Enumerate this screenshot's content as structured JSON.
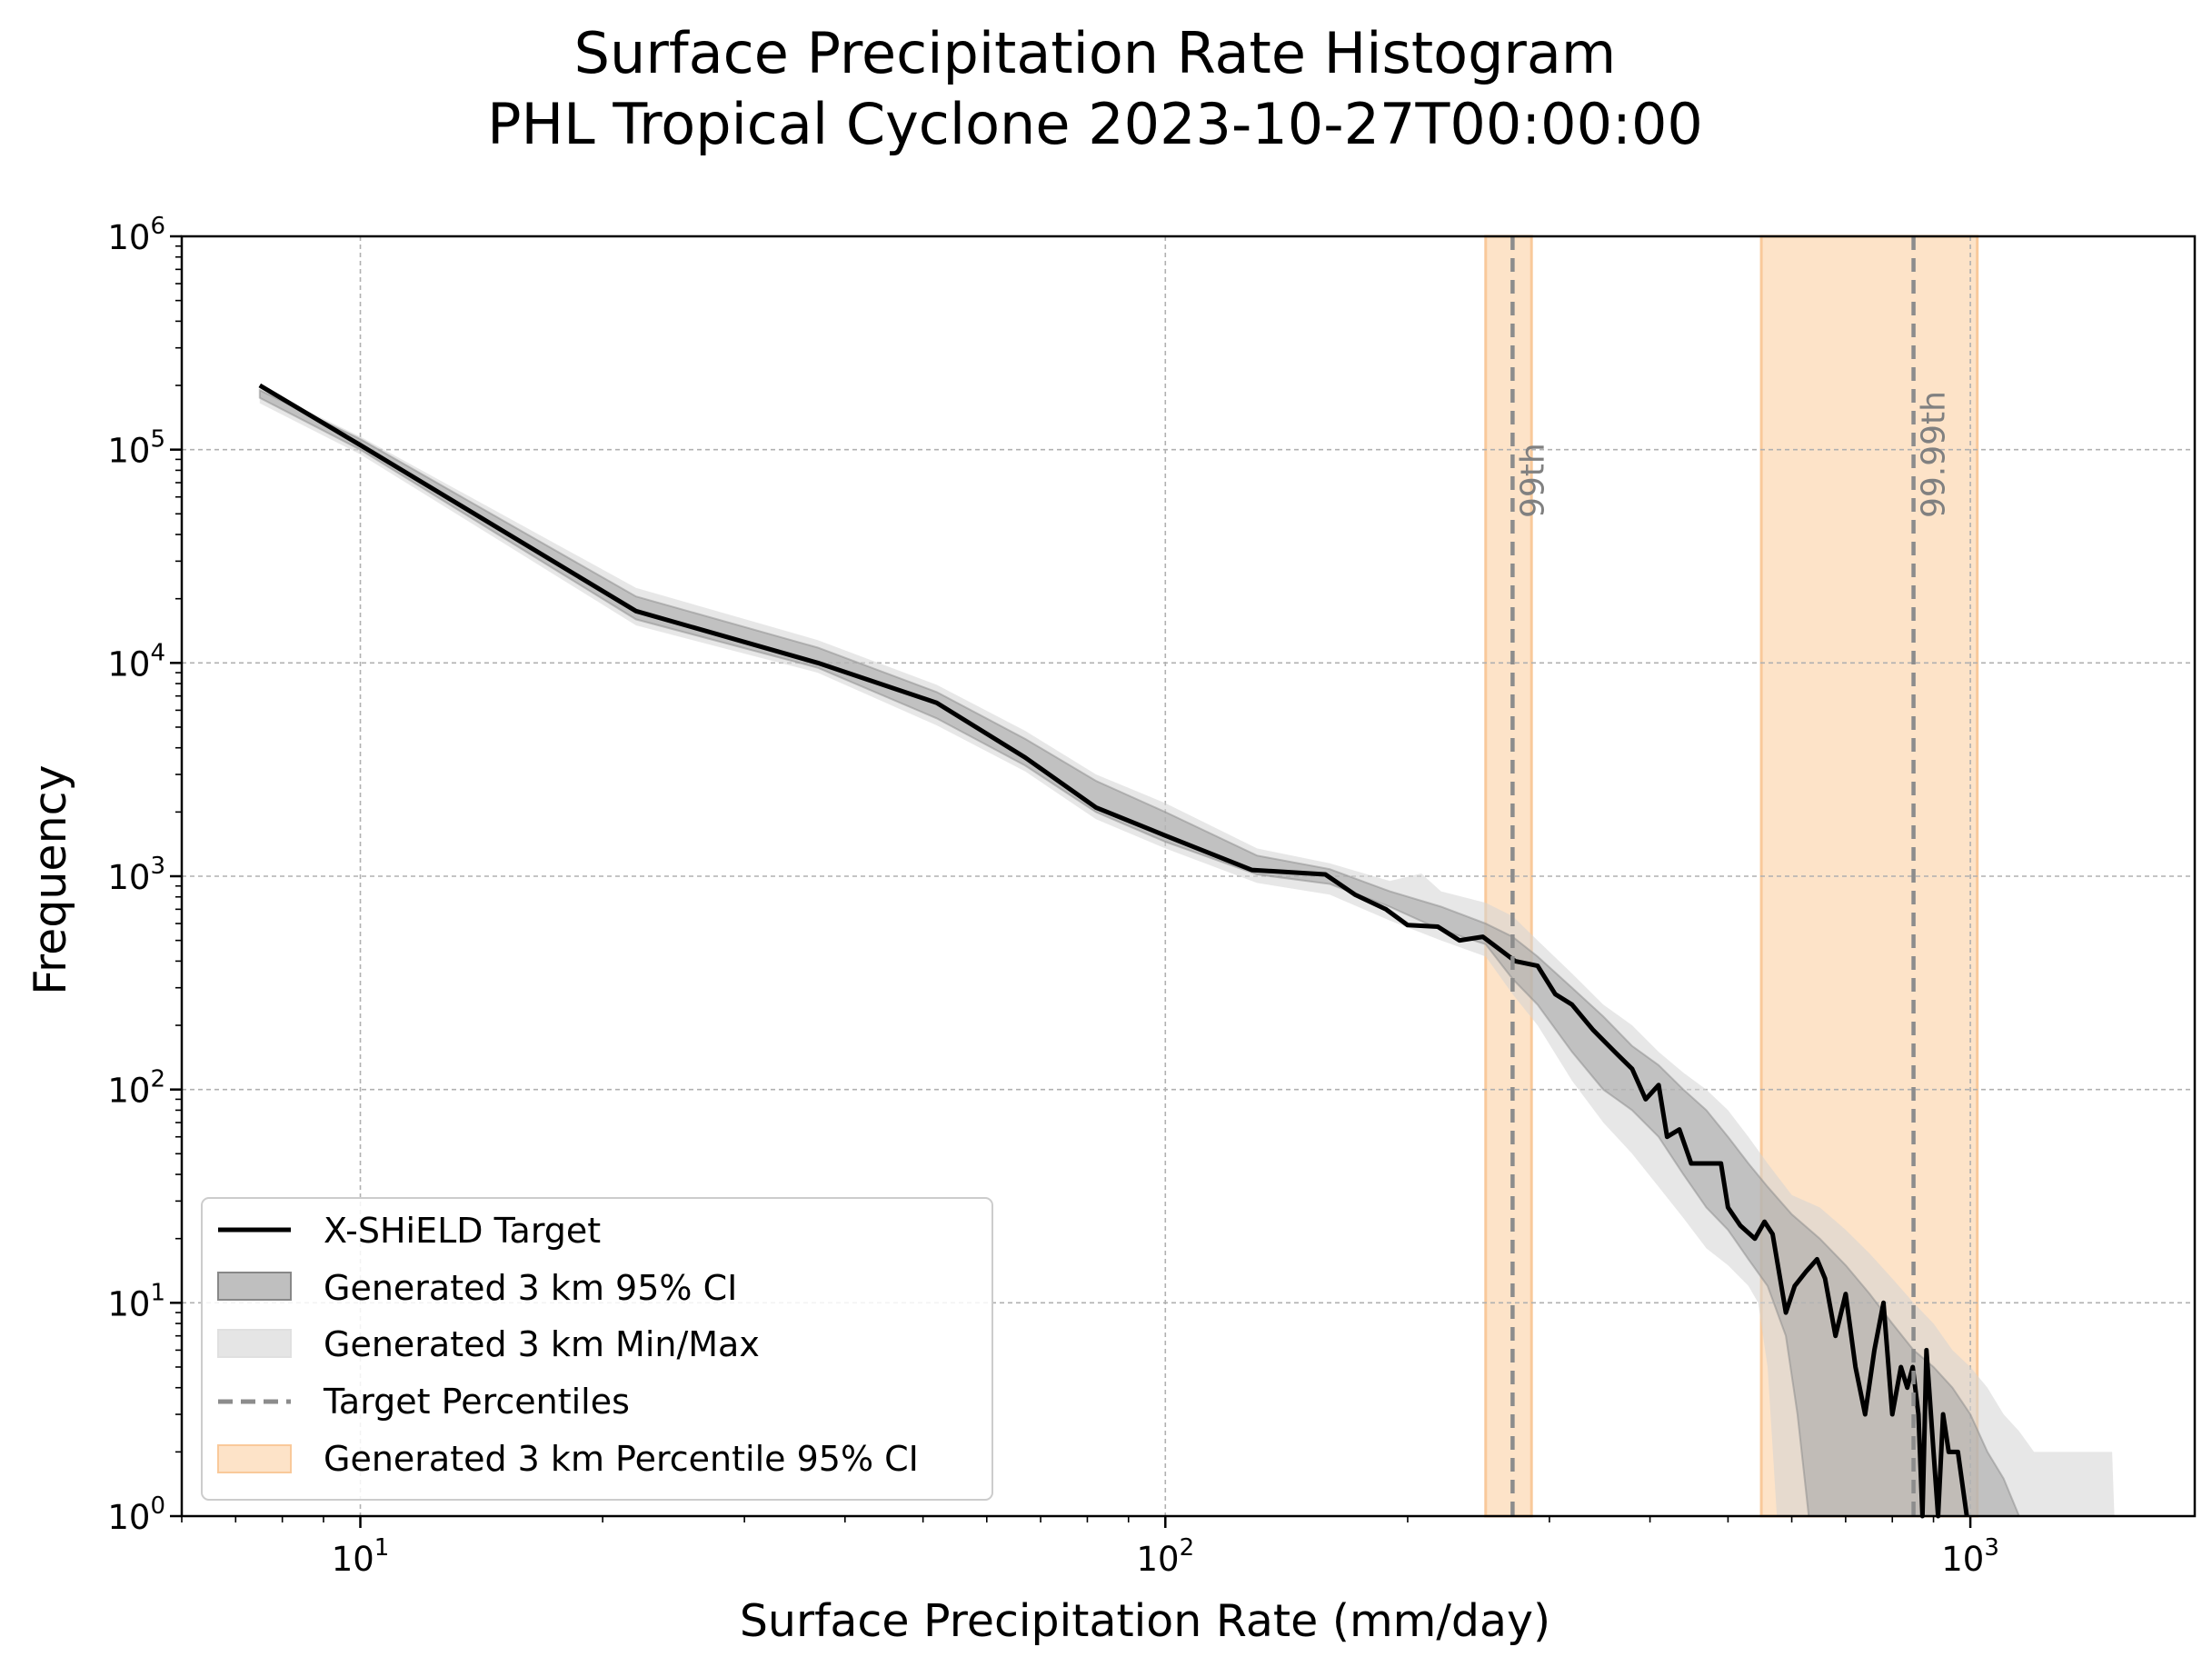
{
  "chart_data": {
    "type": "line",
    "title": "Surface Precipitation Rate Histogram",
    "subtitle": "PHL Tropical Cyclone 2023-10-27T00:00:00",
    "xlabel": "Surface Precipitation Rate (mm/day)",
    "ylabel": "Frequency",
    "xscale": "log",
    "yscale": "log",
    "xlim": [
      6,
      1900
    ],
    "ylim": [
      1,
      1000000
    ],
    "x_ticks": [
      {
        "base": "10",
        "exp": "1",
        "value": 10
      },
      {
        "base": "10",
        "exp": "2",
        "value": 100
      },
      {
        "base": "10",
        "exp": "3",
        "value": 1000
      }
    ],
    "y_ticks": [
      {
        "base": "10",
        "exp": "0",
        "value": 1
      },
      {
        "base": "10",
        "exp": "1",
        "value": 10
      },
      {
        "base": "10",
        "exp": "2",
        "value": 100
      },
      {
        "base": "10",
        "exp": "3",
        "value": 1000
      },
      {
        "base": "10",
        "exp": "4",
        "value": 10000
      },
      {
        "base": "10",
        "exp": "5",
        "value": 100000
      },
      {
        "base": "10",
        "exp": "6",
        "value": 1000000
      }
    ],
    "grid": true,
    "legend_position": "lower-left",
    "series": [
      {
        "name": "X-SHiELD Target",
        "kind": "line",
        "color": "#000000",
        "points": [
          [
            7.5,
            200000
          ],
          [
            10,
            105000
          ],
          [
            22,
            17500
          ],
          [
            37,
            10000
          ],
          [
            52,
            6500
          ],
          [
            67,
            3600
          ],
          [
            82,
            2100
          ],
          [
            100,
            1550
          ],
          [
            128,
            1070
          ],
          [
            158,
            1020
          ],
          [
            172,
            820
          ],
          [
            188,
            700
          ],
          [
            200,
            590
          ],
          [
            218,
            580
          ],
          [
            232,
            500
          ],
          [
            248,
            520
          ],
          [
            272,
            400
          ],
          [
            290,
            380
          ],
          [
            305,
            280
          ],
          [
            320,
            250
          ],
          [
            340,
            190
          ],
          [
            365,
            145
          ],
          [
            380,
            125
          ],
          [
            395,
            90
          ],
          [
            410,
            105
          ],
          [
            420,
            60
          ],
          [
            435,
            65
          ],
          [
            450,
            45
          ],
          [
            470,
            45
          ],
          [
            490,
            45
          ],
          [
            500,
            28
          ],
          [
            518,
            23
          ],
          [
            540,
            20
          ],
          [
            555,
            24
          ],
          [
            568,
            21
          ],
          [
            590,
            9
          ],
          [
            605,
            12
          ],
          [
            625,
            14
          ],
          [
            645,
            16
          ],
          [
            660,
            13
          ],
          [
            680,
            7
          ],
          [
            700,
            11
          ],
          [
            720,
            5
          ],
          [
            740,
            3
          ],
          [
            760,
            6
          ],
          [
            780,
            10
          ],
          [
            800,
            3
          ],
          [
            820,
            5
          ],
          [
            835,
            4
          ],
          [
            848,
            5
          ],
          [
            862,
            3
          ],
          [
            872,
            1
          ],
          [
            882,
            6
          ],
          [
            900,
            2
          ],
          [
            912,
            1
          ],
          [
            925,
            3
          ],
          [
            940,
            2
          ],
          [
            965,
            2
          ],
          [
            990,
            1
          ]
        ]
      },
      {
        "name": "Generated 3 km 95% CI",
        "kind": "band",
        "color": "#a9a9a9",
        "lower": [
          [
            7.5,
            175000
          ],
          [
            10,
            100000
          ],
          [
            22,
            16000
          ],
          [
            37,
            9500
          ],
          [
            52,
            5500
          ],
          [
            67,
            3300
          ],
          [
            82,
            2000
          ],
          [
            100,
            1450
          ],
          [
            130,
            1020
          ],
          [
            160,
            920
          ],
          [
            190,
            720
          ],
          [
            220,
            560
          ],
          [
            250,
            480
          ],
          [
            270,
            330
          ],
          [
            290,
            250
          ],
          [
            320,
            150
          ],
          [
            350,
            100
          ],
          [
            380,
            80
          ],
          [
            410,
            60
          ],
          [
            440,
            40
          ],
          [
            470,
            28
          ],
          [
            500,
            22
          ],
          [
            530,
            16
          ],
          [
            560,
            12
          ],
          [
            590,
            7
          ],
          [
            610,
            3
          ],
          [
            630,
            1
          ]
        ],
        "upper": [
          [
            7.5,
            190000
          ],
          [
            10,
            112000
          ],
          [
            22,
            20500
          ],
          [
            37,
            11800
          ],
          [
            52,
            7300
          ],
          [
            67,
            4400
          ],
          [
            82,
            2800
          ],
          [
            100,
            2000
          ],
          [
            130,
            1250
          ],
          [
            160,
            1080
          ],
          [
            190,
            850
          ],
          [
            220,
            720
          ],
          [
            250,
            600
          ],
          [
            270,
            520
          ],
          [
            290,
            420
          ],
          [
            320,
            300
          ],
          [
            350,
            220
          ],
          [
            380,
            160
          ],
          [
            410,
            130
          ],
          [
            440,
            100
          ],
          [
            470,
            80
          ],
          [
            500,
            60
          ],
          [
            530,
            45
          ],
          [
            560,
            35
          ],
          [
            600,
            26
          ],
          [
            650,
            20
          ],
          [
            700,
            15
          ],
          [
            750,
            11
          ],
          [
            800,
            8
          ],
          [
            850,
            6
          ],
          [
            900,
            5
          ],
          [
            950,
            4
          ],
          [
            1000,
            3
          ],
          [
            1050,
            2
          ],
          [
            1100,
            1.5
          ],
          [
            1150,
            1
          ]
        ]
      },
      {
        "name": "Generated 3 km Min/Max",
        "kind": "band",
        "color": "#d3d3d3",
        "lower": [
          [
            7.5,
            165000
          ],
          [
            10,
            95000
          ],
          [
            22,
            15000
          ],
          [
            37,
            9000
          ],
          [
            52,
            5100
          ],
          [
            67,
            3100
          ],
          [
            82,
            1850
          ],
          [
            100,
            1350
          ],
          [
            130,
            930
          ],
          [
            160,
            820
          ],
          [
            190,
            620
          ],
          [
            220,
            500
          ],
          [
            250,
            420
          ],
          [
            270,
            280
          ],
          [
            290,
            200
          ],
          [
            320,
            110
          ],
          [
            350,
            70
          ],
          [
            380,
            50
          ],
          [
            410,
            35
          ],
          [
            440,
            25
          ],
          [
            470,
            18
          ],
          [
            500,
            15
          ],
          [
            530,
            12
          ],
          [
            545,
            10
          ],
          [
            560,
            5
          ],
          [
            575,
            1
          ]
        ],
        "upper": [
          [
            7.5,
            195000
          ],
          [
            10,
            115000
          ],
          [
            22,
            22500
          ],
          [
            37,
            12800
          ],
          [
            52,
            7900
          ],
          [
            67,
            4800
          ],
          [
            82,
            3000
          ],
          [
            100,
            2200
          ],
          [
            130,
            1350
          ],
          [
            160,
            1150
          ],
          [
            190,
            950
          ],
          [
            208,
            1030
          ],
          [
            220,
            850
          ],
          [
            250,
            750
          ],
          [
            270,
            650
          ],
          [
            290,
            500
          ],
          [
            320,
            350
          ],
          [
            350,
            250
          ],
          [
            380,
            200
          ],
          [
            410,
            150
          ],
          [
            440,
            120
          ],
          [
            470,
            100
          ],
          [
            500,
            80
          ],
          [
            530,
            60
          ],
          [
            560,
            45
          ],
          [
            600,
            32
          ],
          [
            650,
            28
          ],
          [
            700,
            22
          ],
          [
            750,
            17
          ],
          [
            800,
            13
          ],
          [
            850,
            10
          ],
          [
            900,
            8
          ],
          [
            950,
            6
          ],
          [
            1000,
            5
          ],
          [
            1050,
            4
          ],
          [
            1100,
            3
          ],
          [
            1150,
            2.5
          ],
          [
            1200,
            2
          ],
          [
            1300,
            2
          ],
          [
            1400,
            2
          ],
          [
            1500,
            2
          ],
          [
            1510,
            1
          ]
        ]
      }
    ],
    "percentiles": {
      "legend_line": "Target Percentiles",
      "legend_band": "Generated 3 km Percentile 95% CI",
      "line_color": "#8c8c8c",
      "band_color": "#fde3c8",
      "band_edge_color": "#f9c99a",
      "items": [
        {
          "label": "99th",
          "target": 270,
          "ci": [
            250,
            285
          ]
        },
        {
          "label": "99.99th",
          "target": 850,
          "ci": [
            550,
            1020
          ]
        }
      ]
    }
  }
}
